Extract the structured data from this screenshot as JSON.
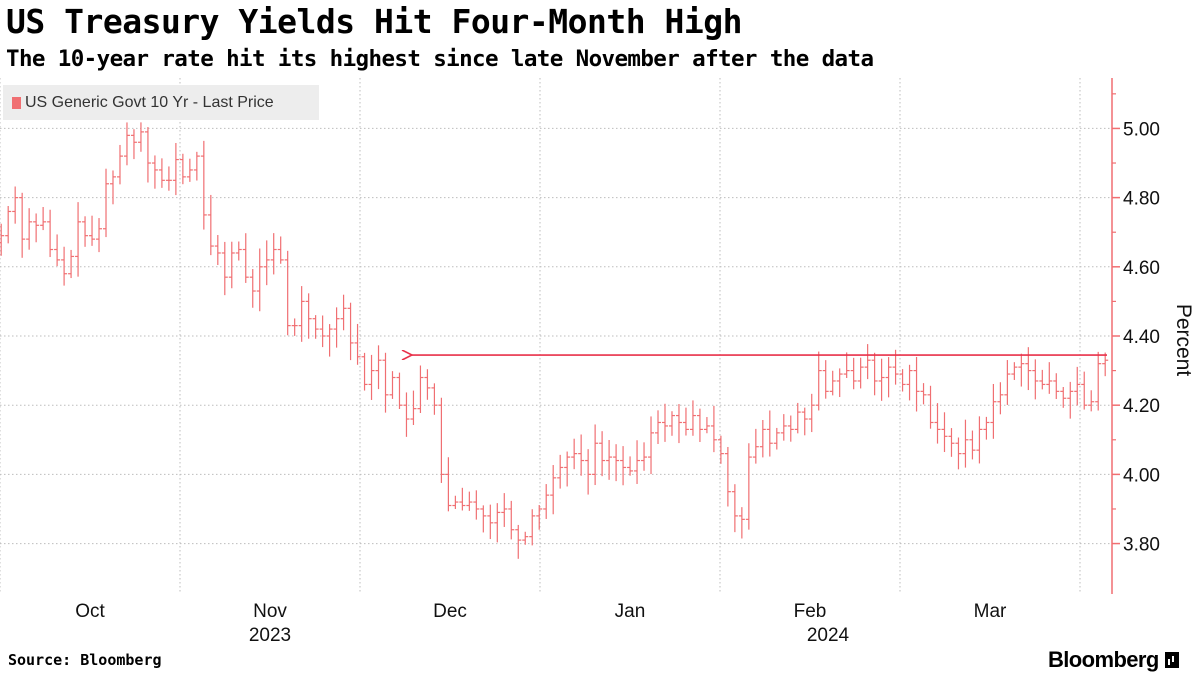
{
  "title": "US Treasury Yields Hit Four-Month High",
  "subtitle": "The 10-year rate hit its highest since late November after the data",
  "source": "Source: Bloomberg",
  "brand": "Bloomberg",
  "colors": {
    "series": "#f06f72",
    "arrow": "#e8314a",
    "grid": "#bdbdbd",
    "axis": "#f06f72"
  },
  "chart_data": {
    "type": "ohlc",
    "title": "US Treasury Yields Hit Four-Month High",
    "ylabel": "Percent",
    "ylim": [
      3.66,
      5.14
    ],
    "yticks": [
      3.8,
      4.0,
      4.2,
      4.4,
      4.6,
      4.8,
      5.0
    ],
    "ytick_labels": [
      "3.80",
      "4.00",
      "4.20",
      "4.40",
      "4.60",
      "4.80",
      "5.00"
    ],
    "xticks": [
      {
        "label": "Oct",
        "day": 15
      },
      {
        "label": "Nov",
        "day": 45
      },
      {
        "label": "Dec",
        "day": 75
      },
      {
        "label": "Jan",
        "day": 105
      },
      {
        "label": "Feb",
        "day": 135
      },
      {
        "label": "Mar",
        "day": 165
      }
    ],
    "year_labels": [
      {
        "label": "2023",
        "day": 45
      },
      {
        "label": "2024",
        "day": 138
      }
    ],
    "gridline_days": [
      0,
      30,
      60,
      90,
      120,
      150,
      180
    ],
    "xlim": [
      0,
      185
    ],
    "series": [
      {
        "name": "US Generic Govt 10 Yr - Last Price",
        "close": [
          4.69,
          4.76,
          4.8,
          4.68,
          4.73,
          4.72,
          4.73,
          4.65,
          4.62,
          4.58,
          4.63,
          4.73,
          4.69,
          4.68,
          4.71,
          4.84,
          4.86,
          4.92,
          4.98,
          4.96,
          4.99,
          4.9,
          4.88,
          4.85,
          4.85,
          4.91,
          4.86,
          4.88,
          4.92,
          4.75,
          4.66,
          4.64,
          4.57,
          4.64,
          4.65,
          4.57,
          4.53,
          4.6,
          4.62,
          4.65,
          4.62,
          4.43,
          4.43,
          4.5,
          4.45,
          4.42,
          4.4,
          4.42,
          4.45,
          4.48,
          4.38,
          4.34,
          4.26,
          4.3,
          4.33,
          4.23,
          4.28,
          4.2,
          4.16,
          4.19,
          4.28,
          4.25,
          4.2,
          4.0,
          3.91,
          3.92,
          3.91,
          3.92,
          3.9,
          3.88,
          3.86,
          3.89,
          3.9,
          3.84,
          3.81,
          3.82,
          3.88,
          3.9,
          3.94,
          3.99,
          4.02,
          4.05,
          4.06,
          4.04,
          4.0,
          4.09,
          4.04,
          4.05,
          4.04,
          4.02,
          4.01,
          4.04,
          4.05,
          4.12,
          4.15,
          4.14,
          4.17,
          4.15,
          4.13,
          4.17,
          4.13,
          4.14,
          4.1,
          4.06,
          3.95,
          3.88,
          3.87,
          4.05,
          4.08,
          4.13,
          4.09,
          4.12,
          4.14,
          4.13,
          4.18,
          4.16,
          4.2,
          4.3,
          4.24,
          4.27,
          4.29,
          4.3,
          4.27,
          4.31,
          4.33,
          4.27,
          4.28,
          4.31,
          4.29,
          4.26,
          4.3,
          4.24,
          4.23,
          4.15,
          4.13,
          4.11,
          4.09,
          4.06,
          4.1,
          4.07,
          4.13,
          4.15,
          4.21,
          4.23,
          4.29,
          4.31,
          4.32,
          4.3,
          4.27,
          4.26,
          4.27,
          4.24,
          4.22,
          4.24,
          4.26,
          4.2,
          4.21,
          4.32,
          4.33
        ]
      }
    ],
    "annotation": {
      "type": "arrow",
      "value": 4.345,
      "from_day": 184.5,
      "to_day": 67
    }
  }
}
